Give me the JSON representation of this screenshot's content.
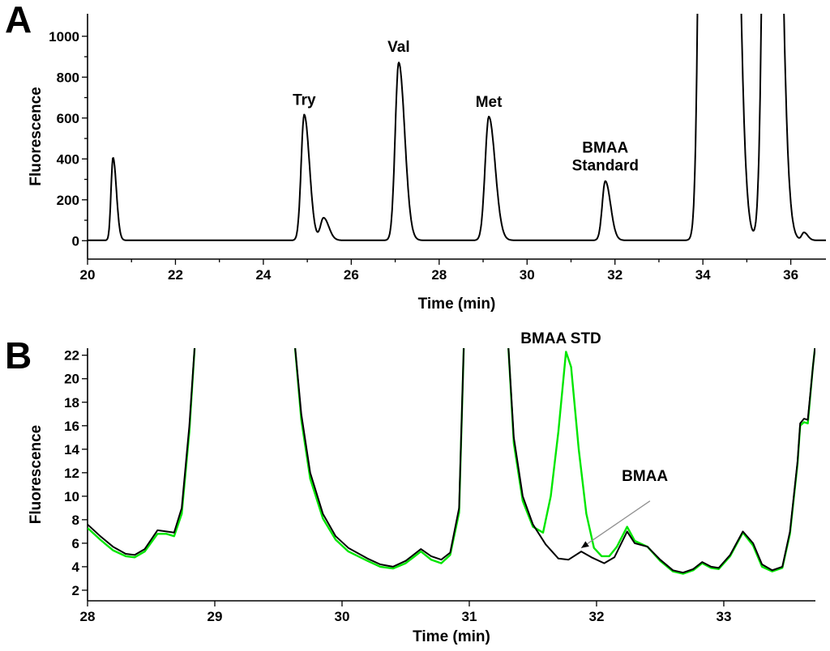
{
  "chart_data": [
    {
      "panel": "A",
      "type": "line",
      "xlabel": "Time (min)",
      "ylabel": "Fluorescence",
      "xlim": [
        20,
        36.8
      ],
      "ylim": [
        -90,
        1110
      ],
      "xticks": [
        20,
        22,
        24,
        26,
        28,
        30,
        32,
        34,
        36
      ],
      "yticks": [
        0,
        200,
        400,
        600,
        800,
        1000
      ],
      "grid": false,
      "baseline": 2,
      "series": [
        {
          "color": "#000000",
          "peaks": [
            {
              "t": 20.58,
              "h": 405,
              "w": 0.045
            },
            {
              "t": 24.93,
              "h": 615,
              "w": 0.07
            },
            {
              "t": 25.37,
              "h": 110,
              "w": 0.07
            },
            {
              "t": 27.08,
              "h": 870,
              "w": 0.08
            },
            {
              "t": 29.13,
              "h": 605,
              "w": 0.085
            },
            {
              "t": 31.78,
              "h": 290,
              "w": 0.07
            },
            {
              "t": 34.05,
              "h": 5000,
              "w": 0.1
            },
            {
              "t": 34.55,
              "h": 5000,
              "w": 0.11
            },
            {
              "t": 35.52,
              "h": 5000,
              "w": 0.11
            },
            {
              "t": 36.3,
              "h": 38,
              "w": 0.05
            }
          ]
        }
      ],
      "annotations": [
        {
          "lines": [
            "Try"
          ],
          "x": 24.93,
          "y": 640
        },
        {
          "lines": [
            "Val"
          ],
          "x": 27.08,
          "y": 900
        },
        {
          "lines": [
            "Met"
          ],
          "x": 29.13,
          "y": 630
        },
        {
          "lines": [
            "BMAA",
            "Standard"
          ],
          "x": 31.78,
          "y": 320
        }
      ]
    },
    {
      "panel": "B",
      "type": "line",
      "xlabel": "Time (min)",
      "ylabel": "Fluorescence",
      "xlim": [
        28,
        33.72
      ],
      "ylim": [
        1.1,
        22.6
      ],
      "xticks": [
        28,
        29,
        30,
        31,
        32,
        33
      ],
      "yticks": [
        2,
        4,
        6,
        8,
        10,
        12,
        14,
        16,
        18,
        20,
        22
      ],
      "grid": false,
      "series": [
        {
          "color": "#000000",
          "points": [
            [
              28.0,
              7.6
            ],
            [
              28.1,
              6.6
            ],
            [
              28.2,
              5.7
            ],
            [
              28.3,
              5.1
            ],
            [
              28.37,
              5.0
            ],
            [
              28.45,
              5.5
            ],
            [
              28.55,
              7.1
            ],
            [
              28.62,
              7.0
            ],
            [
              28.68,
              6.9
            ],
            [
              28.74,
              9.0
            ],
            [
              28.8,
              16.0
            ],
            [
              28.85,
              24.0
            ]
          ]
        },
        {
          "color": "#00e600",
          "points": [
            [
              28.0,
              7.3
            ],
            [
              28.1,
              6.3
            ],
            [
              28.2,
              5.4
            ],
            [
              28.3,
              4.9
            ],
            [
              28.37,
              4.8
            ],
            [
              28.45,
              5.3
            ],
            [
              28.55,
              6.8
            ],
            [
              28.62,
              6.8
            ],
            [
              28.68,
              6.6
            ],
            [
              28.74,
              8.5
            ],
            [
              28.8,
              15.5
            ],
            [
              28.85,
              24.0
            ]
          ]
        },
        {
          "color": "#000000",
          "points": [
            [
              29.62,
              24.0
            ],
            [
              29.68,
              17.0
            ],
            [
              29.75,
              12.0
            ],
            [
              29.85,
              8.5
            ],
            [
              29.95,
              6.6
            ],
            [
              30.05,
              5.6
            ],
            [
              30.2,
              4.7
            ],
            [
              30.3,
              4.2
            ],
            [
              30.4,
              4.0
            ],
            [
              30.5,
              4.5
            ],
            [
              30.62,
              5.5
            ],
            [
              30.7,
              4.9
            ],
            [
              30.78,
              4.6
            ],
            [
              30.85,
              5.2
            ],
            [
              30.92,
              9.0
            ],
            [
              30.96,
              24.0
            ]
          ]
        },
        {
          "color": "#00e600",
          "points": [
            [
              29.62,
              24.0
            ],
            [
              29.68,
              16.5
            ],
            [
              29.75,
              11.5
            ],
            [
              29.85,
              8.1
            ],
            [
              29.95,
              6.3
            ],
            [
              30.05,
              5.3
            ],
            [
              30.2,
              4.5
            ],
            [
              30.3,
              4.0
            ],
            [
              30.4,
              3.85
            ],
            [
              30.5,
              4.3
            ],
            [
              30.62,
              5.3
            ],
            [
              30.7,
              4.6
            ],
            [
              30.78,
              4.3
            ],
            [
              30.85,
              5.0
            ],
            [
              30.92,
              8.6
            ],
            [
              30.96,
              24.0
            ]
          ]
        },
        {
          "color": "#000000",
          "points": [
            [
              31.3,
              24.0
            ],
            [
              31.35,
              15.0
            ],
            [
              31.42,
              10.0
            ],
            [
              31.5,
              7.6
            ],
            [
              31.6,
              5.9
            ],
            [
              31.7,
              4.7
            ],
            [
              31.78,
              4.6
            ],
            [
              31.88,
              5.3
            ],
            [
              31.96,
              4.8
            ],
            [
              32.06,
              4.3
            ],
            [
              32.14,
              4.8
            ],
            [
              32.24,
              7.0
            ],
            [
              32.3,
              6.0
            ],
            [
              32.4,
              5.7
            ],
            [
              32.5,
              4.6
            ],
            [
              32.6,
              3.7
            ],
            [
              32.68,
              3.5
            ],
            [
              32.76,
              3.8
            ],
            [
              32.83,
              4.4
            ],
            [
              32.9,
              4.0
            ],
            [
              32.96,
              3.9
            ],
            [
              33.05,
              5.0
            ],
            [
              33.15,
              7.0
            ],
            [
              33.23,
              6.0
            ],
            [
              33.3,
              4.2
            ],
            [
              33.38,
              3.7
            ],
            [
              33.46,
              4.0
            ],
            [
              33.52,
              7.0
            ],
            [
              33.58,
              13.0
            ],
            [
              33.6,
              16.2
            ],
            [
              33.63,
              16.6
            ],
            [
              33.66,
              16.5
            ],
            [
              33.7,
              21.0
            ],
            [
              33.72,
              23.0
            ]
          ]
        },
        {
          "color": "#00e600",
          "points": [
            [
              31.3,
              24.0
            ],
            [
              31.35,
              14.5
            ],
            [
              31.42,
              9.6
            ],
            [
              31.5,
              7.4
            ],
            [
              31.58,
              6.9
            ],
            [
              31.64,
              10.0
            ],
            [
              31.7,
              15.5
            ],
            [
              31.76,
              22.3
            ],
            [
              31.8,
              21.0
            ],
            [
              31.86,
              14.0
            ],
            [
              31.92,
              8.5
            ],
            [
              31.98,
              5.6
            ],
            [
              32.04,
              4.9
            ],
            [
              32.1,
              4.9
            ],
            [
              32.16,
              5.7
            ],
            [
              32.24,
              7.4
            ],
            [
              32.3,
              6.2
            ],
            [
              32.4,
              5.7
            ],
            [
              32.5,
              4.5
            ],
            [
              32.6,
              3.6
            ],
            [
              32.68,
              3.4
            ],
            [
              32.76,
              3.7
            ],
            [
              32.83,
              4.3
            ],
            [
              32.9,
              3.9
            ],
            [
              32.96,
              3.8
            ],
            [
              33.05,
              4.9
            ],
            [
              33.15,
              6.9
            ],
            [
              33.23,
              5.8
            ],
            [
              33.3,
              4.0
            ],
            [
              33.38,
              3.6
            ],
            [
              33.46,
              3.9
            ],
            [
              33.52,
              6.8
            ],
            [
              33.58,
              12.8
            ],
            [
              33.6,
              16.0
            ],
            [
              33.63,
              16.3
            ],
            [
              33.66,
              16.2
            ],
            [
              33.7,
              21.0
            ],
            [
              33.72,
              23.0
            ]
          ]
        }
      ],
      "annotations": [
        {
          "lines": [
            "BMAA STD"
          ],
          "x": 31.72,
          "y": 22.6
        },
        {
          "lines": [
            "BMAA"
          ],
          "x": 32.38,
          "y": 10.9
        }
      ],
      "arrow": {
        "from": [
          32.42,
          9.6
        ],
        "to": [
          31.88,
          5.6
        ]
      }
    }
  ]
}
